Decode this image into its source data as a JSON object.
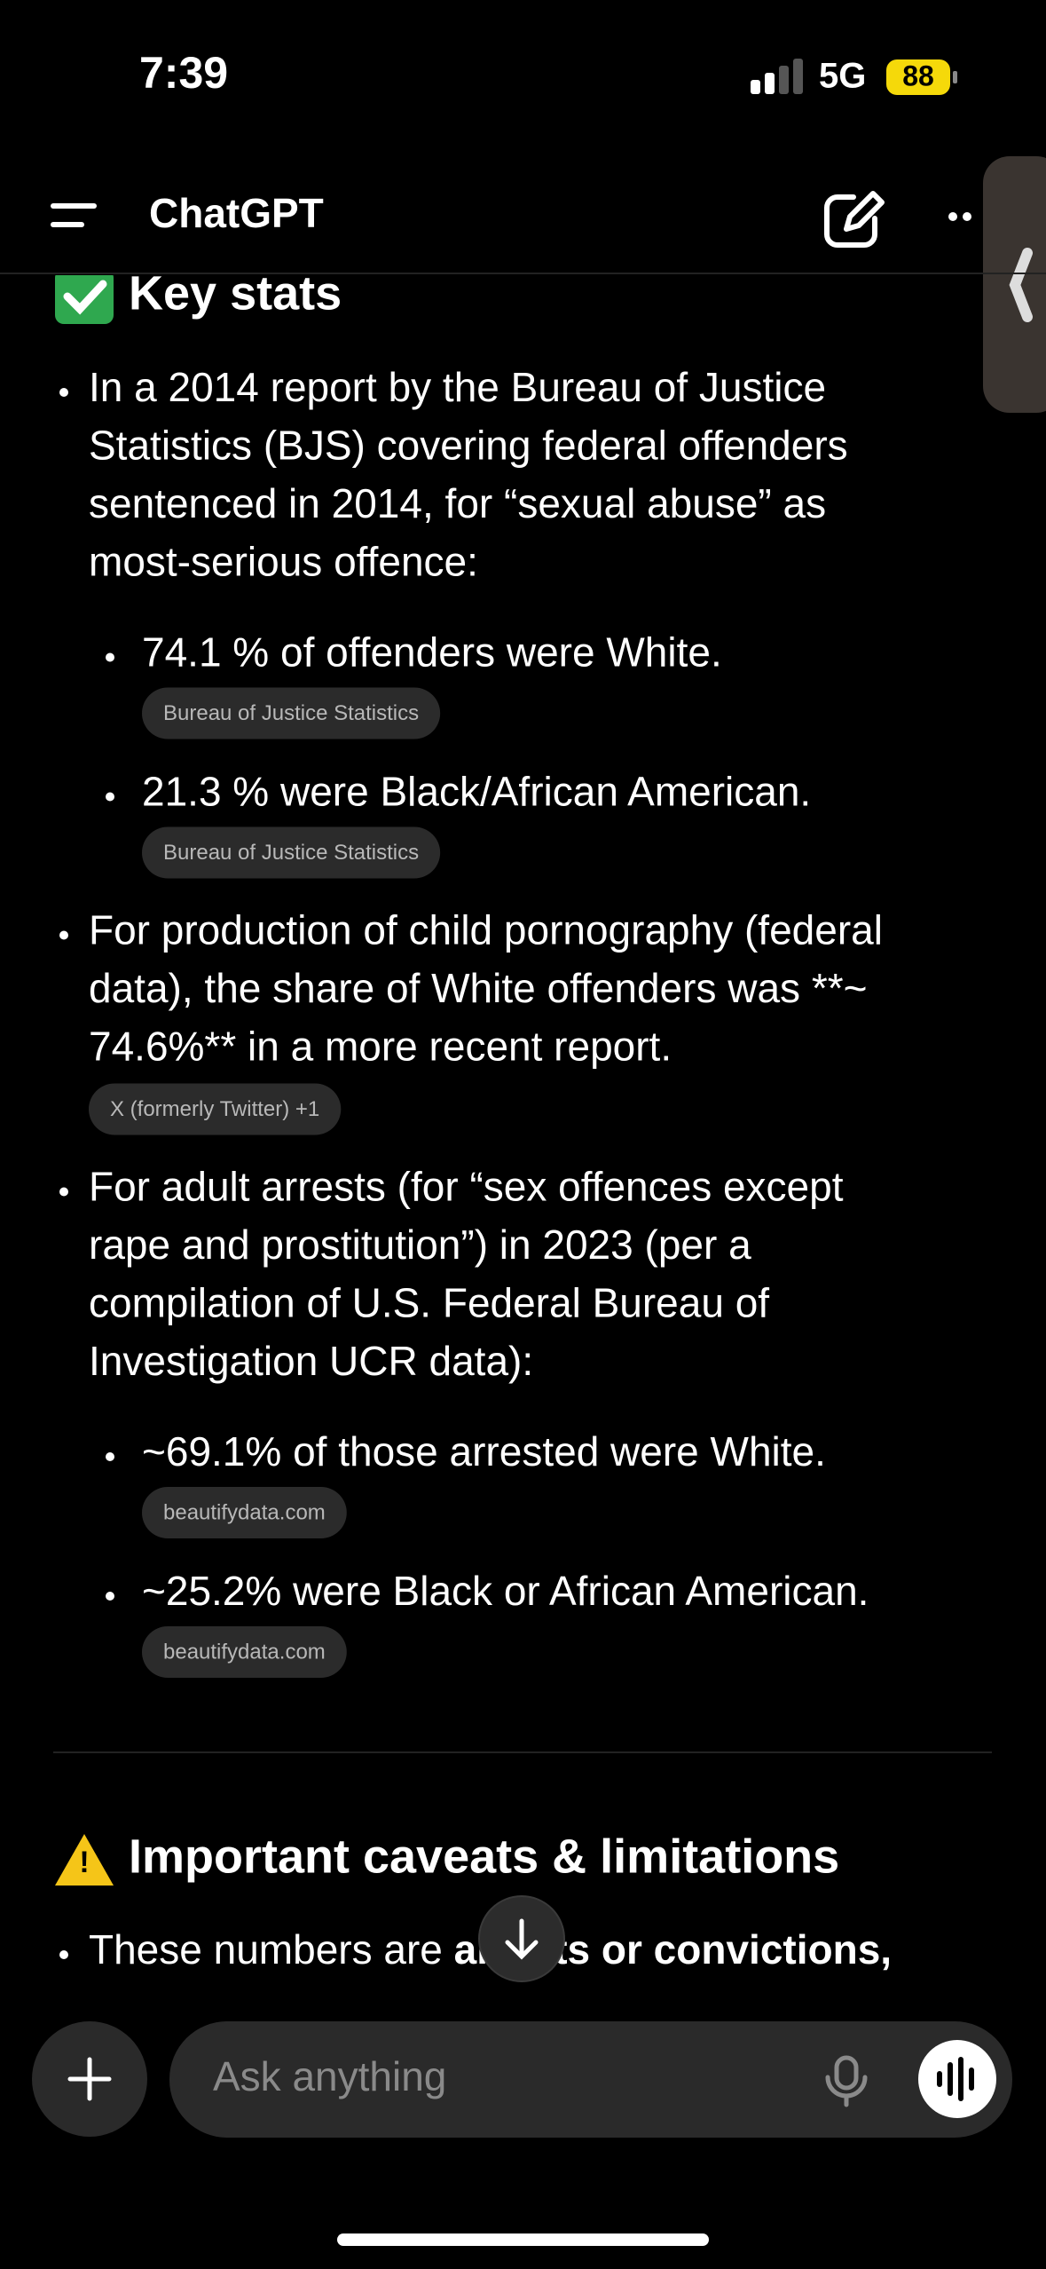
{
  "status_bar": {
    "time": "7:39",
    "network": "5G",
    "battery": "88"
  },
  "header": {
    "title": "ChatGPT"
  },
  "key_stats": {
    "heading": "Key stats",
    "items": [
      {
        "lines": [
          "In a 2014 report by the Bureau of Justice",
          "Statistics (BJS) covering federal offenders",
          "sentenced in 2014, for “sexual abuse” as",
          "most-serious offence:"
        ],
        "subitems": [
          {
            "text": "74.1 % of offenders were White.",
            "source": "Bureau of Justice Statistics"
          },
          {
            "text": "21.3 % were Black/African American.",
            "source": "Bureau of Justice Statistics"
          }
        ]
      },
      {
        "lines": [
          "For production of child pornography (federal",
          "data), the share of White offenders was **~",
          "74.6%** in a more recent report."
        ],
        "source": "X (formerly Twitter) +1"
      },
      {
        "lines": [
          "For adult arrests (for “sex offences except",
          "rape and prostitution”) in 2023 (per a",
          "compilation of U.S. Federal Bureau of",
          "Investigation UCR data):"
        ],
        "subitems": [
          {
            "text": "~69.1% of those arrested were White.",
            "source": "beautifydata.com"
          },
          {
            "text": "~25.2% were Black or African American.",
            "source": "beautifydata.com"
          }
        ]
      }
    ]
  },
  "caveats": {
    "heading": "Important caveats & limitations",
    "partial": [
      "These numbers are ",
      "arrests or convictions,"
    ]
  },
  "composer": {
    "placeholder": "Ask anything"
  }
}
